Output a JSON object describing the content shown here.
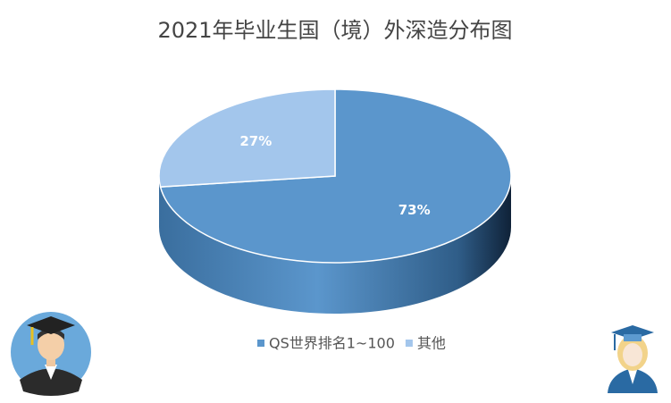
{
  "chart_data": {
    "type": "pie",
    "title": "2021年毕业生国（境）外深造分布图",
    "categories": [
      "QS世界排名1~100",
      "其他"
    ],
    "values": [
      73,
      27
    ],
    "value_labels": [
      "73%",
      "27%"
    ],
    "colors": [
      "#5b96cc",
      "#a3c6ec"
    ],
    "legend": "bottom"
  }
}
